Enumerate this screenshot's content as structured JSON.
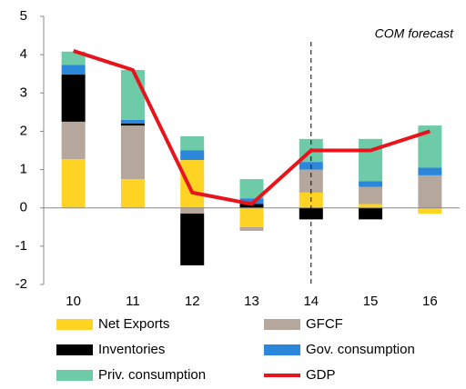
{
  "chart_data": {
    "type": "stacked_bar_line",
    "annotation": "COM forecast",
    "categories": [
      "10",
      "11",
      "12",
      "13",
      "14",
      "15",
      "16"
    ],
    "series": [
      {
        "name": "Net Exports",
        "color": "#FFD324",
        "values": [
          1.27,
          0.75,
          1.25,
          -0.5,
          0.4,
          0.1,
          -0.15
        ]
      },
      {
        "name": "GFCF",
        "color": "#B5A79C",
        "values": [
          0.98,
          1.4,
          -0.15,
          -0.1,
          0.6,
          0.45,
          0.85
        ]
      },
      {
        "name": "Inventories",
        "color": "#000000",
        "values": [
          1.23,
          0.05,
          -1.35,
          0.1,
          -0.3,
          -0.3,
          0
        ]
      },
      {
        "name": "Gov. consumption",
        "color": "#2A87D9",
        "values": [
          0.25,
          0.1,
          0.25,
          0.15,
          0.2,
          0.15,
          0.2
        ]
      },
      {
        "name": "Priv. consumption",
        "color": "#6DCBA8",
        "values": [
          0.35,
          1.3,
          0.37,
          0.5,
          0.6,
          1.1,
          1.1
        ]
      },
      {
        "name": "GDP",
        "color": "#E8141C",
        "type": "line",
        "values": [
          4.1,
          3.6,
          0.4,
          0.1,
          1.5,
          1.5,
          2.0
        ]
      }
    ],
    "ylim": [
      -2,
      5
    ],
    "yticks": [
      -2,
      -1,
      0,
      1,
      2,
      3,
      4,
      5
    ],
    "grid": false
  }
}
